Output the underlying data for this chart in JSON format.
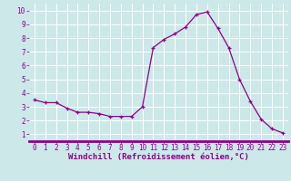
{
  "x": [
    0,
    1,
    2,
    3,
    4,
    5,
    6,
    7,
    8,
    9,
    10,
    11,
    12,
    13,
    14,
    15,
    16,
    17,
    18,
    19,
    20,
    21,
    22,
    23
  ],
  "y": [
    3.5,
    3.3,
    3.3,
    2.9,
    2.6,
    2.6,
    2.5,
    2.3,
    2.3,
    2.3,
    3.0,
    7.3,
    7.9,
    8.3,
    8.8,
    9.7,
    9.9,
    8.7,
    7.3,
    5.0,
    3.4,
    2.1,
    1.4,
    1.1
  ],
  "line_color": "#8b008b",
  "marker": "+",
  "marker_size": 3,
  "bg_color": "#cce8e8",
  "grid_color": "#ffffff",
  "xlabel": "Windchill (Refroidissement éolien,°C)",
  "xlabel_color": "#8b008b",
  "xlim": [
    -0.5,
    23.5
  ],
  "ylim": [
    0.5,
    10.5
  ],
  "xticks": [
    0,
    1,
    2,
    3,
    4,
    5,
    6,
    7,
    8,
    9,
    10,
    11,
    12,
    13,
    14,
    15,
    16,
    17,
    18,
    19,
    20,
    21,
    22,
    23
  ],
  "yticks": [
    1,
    2,
    3,
    4,
    5,
    6,
    7,
    8,
    9,
    10
  ],
  "tick_color": "#8b008b",
  "tick_fontsize": 5.5,
  "xlabel_fontsize": 6.5,
  "spine_color": "#8b008b",
  "axis_bar_color": "#8b008b"
}
